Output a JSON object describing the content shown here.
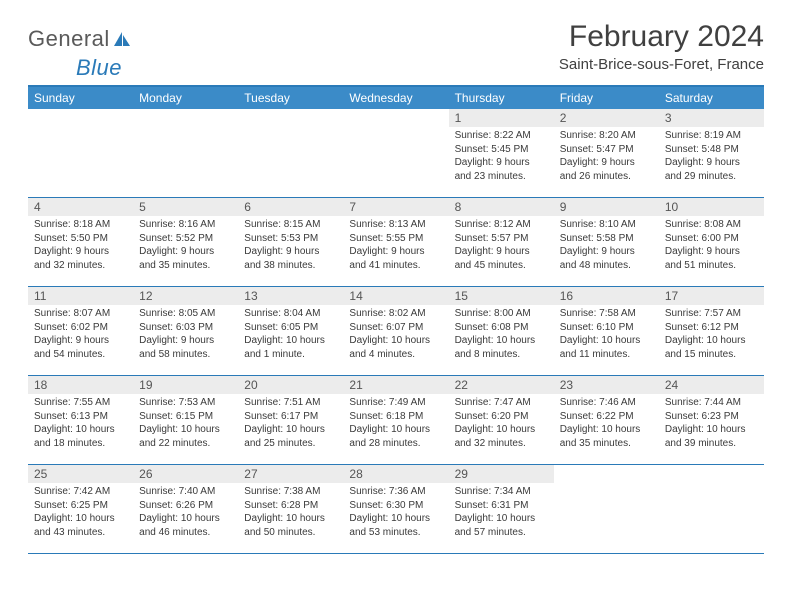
{
  "brand": {
    "text1": "General",
    "text2": "Blue"
  },
  "title": "February 2024",
  "location": "Saint-Brice-sous-Foret, France",
  "colors": {
    "header_bg": "#3b8bc8",
    "header_text": "#ffffff",
    "rule": "#2a7ab8",
    "daynum_bg": "#ececec",
    "daynum_text": "#555555",
    "body_text": "#3a3a3a",
    "title_text": "#404040"
  },
  "day_headers": [
    "Sunday",
    "Monday",
    "Tuesday",
    "Wednesday",
    "Thursday",
    "Friday",
    "Saturday"
  ],
  "weeks": [
    [
      null,
      null,
      null,
      null,
      {
        "n": "1",
        "sr": "Sunrise: 8:22 AM",
        "ss": "Sunset: 5:45 PM",
        "d1": "Daylight: 9 hours",
        "d2": "and 23 minutes."
      },
      {
        "n": "2",
        "sr": "Sunrise: 8:20 AM",
        "ss": "Sunset: 5:47 PM",
        "d1": "Daylight: 9 hours",
        "d2": "and 26 minutes."
      },
      {
        "n": "3",
        "sr": "Sunrise: 8:19 AM",
        "ss": "Sunset: 5:48 PM",
        "d1": "Daylight: 9 hours",
        "d2": "and 29 minutes."
      }
    ],
    [
      {
        "n": "4",
        "sr": "Sunrise: 8:18 AM",
        "ss": "Sunset: 5:50 PM",
        "d1": "Daylight: 9 hours",
        "d2": "and 32 minutes."
      },
      {
        "n": "5",
        "sr": "Sunrise: 8:16 AM",
        "ss": "Sunset: 5:52 PM",
        "d1": "Daylight: 9 hours",
        "d2": "and 35 minutes."
      },
      {
        "n": "6",
        "sr": "Sunrise: 8:15 AM",
        "ss": "Sunset: 5:53 PM",
        "d1": "Daylight: 9 hours",
        "d2": "and 38 minutes."
      },
      {
        "n": "7",
        "sr": "Sunrise: 8:13 AM",
        "ss": "Sunset: 5:55 PM",
        "d1": "Daylight: 9 hours",
        "d2": "and 41 minutes."
      },
      {
        "n": "8",
        "sr": "Sunrise: 8:12 AM",
        "ss": "Sunset: 5:57 PM",
        "d1": "Daylight: 9 hours",
        "d2": "and 45 minutes."
      },
      {
        "n": "9",
        "sr": "Sunrise: 8:10 AM",
        "ss": "Sunset: 5:58 PM",
        "d1": "Daylight: 9 hours",
        "d2": "and 48 minutes."
      },
      {
        "n": "10",
        "sr": "Sunrise: 8:08 AM",
        "ss": "Sunset: 6:00 PM",
        "d1": "Daylight: 9 hours",
        "d2": "and 51 minutes."
      }
    ],
    [
      {
        "n": "11",
        "sr": "Sunrise: 8:07 AM",
        "ss": "Sunset: 6:02 PM",
        "d1": "Daylight: 9 hours",
        "d2": "and 54 minutes."
      },
      {
        "n": "12",
        "sr": "Sunrise: 8:05 AM",
        "ss": "Sunset: 6:03 PM",
        "d1": "Daylight: 9 hours",
        "d2": "and 58 minutes."
      },
      {
        "n": "13",
        "sr": "Sunrise: 8:04 AM",
        "ss": "Sunset: 6:05 PM",
        "d1": "Daylight: 10 hours",
        "d2": "and 1 minute."
      },
      {
        "n": "14",
        "sr": "Sunrise: 8:02 AM",
        "ss": "Sunset: 6:07 PM",
        "d1": "Daylight: 10 hours",
        "d2": "and 4 minutes."
      },
      {
        "n": "15",
        "sr": "Sunrise: 8:00 AM",
        "ss": "Sunset: 6:08 PM",
        "d1": "Daylight: 10 hours",
        "d2": "and 8 minutes."
      },
      {
        "n": "16",
        "sr": "Sunrise: 7:58 AM",
        "ss": "Sunset: 6:10 PM",
        "d1": "Daylight: 10 hours",
        "d2": "and 11 minutes."
      },
      {
        "n": "17",
        "sr": "Sunrise: 7:57 AM",
        "ss": "Sunset: 6:12 PM",
        "d1": "Daylight: 10 hours",
        "d2": "and 15 minutes."
      }
    ],
    [
      {
        "n": "18",
        "sr": "Sunrise: 7:55 AM",
        "ss": "Sunset: 6:13 PM",
        "d1": "Daylight: 10 hours",
        "d2": "and 18 minutes."
      },
      {
        "n": "19",
        "sr": "Sunrise: 7:53 AM",
        "ss": "Sunset: 6:15 PM",
        "d1": "Daylight: 10 hours",
        "d2": "and 22 minutes."
      },
      {
        "n": "20",
        "sr": "Sunrise: 7:51 AM",
        "ss": "Sunset: 6:17 PM",
        "d1": "Daylight: 10 hours",
        "d2": "and 25 minutes."
      },
      {
        "n": "21",
        "sr": "Sunrise: 7:49 AM",
        "ss": "Sunset: 6:18 PM",
        "d1": "Daylight: 10 hours",
        "d2": "and 28 minutes."
      },
      {
        "n": "22",
        "sr": "Sunrise: 7:47 AM",
        "ss": "Sunset: 6:20 PM",
        "d1": "Daylight: 10 hours",
        "d2": "and 32 minutes."
      },
      {
        "n": "23",
        "sr": "Sunrise: 7:46 AM",
        "ss": "Sunset: 6:22 PM",
        "d1": "Daylight: 10 hours",
        "d2": "and 35 minutes."
      },
      {
        "n": "24",
        "sr": "Sunrise: 7:44 AM",
        "ss": "Sunset: 6:23 PM",
        "d1": "Daylight: 10 hours",
        "d2": "and 39 minutes."
      }
    ],
    [
      {
        "n": "25",
        "sr": "Sunrise: 7:42 AM",
        "ss": "Sunset: 6:25 PM",
        "d1": "Daylight: 10 hours",
        "d2": "and 43 minutes."
      },
      {
        "n": "26",
        "sr": "Sunrise: 7:40 AM",
        "ss": "Sunset: 6:26 PM",
        "d1": "Daylight: 10 hours",
        "d2": "and 46 minutes."
      },
      {
        "n": "27",
        "sr": "Sunrise: 7:38 AM",
        "ss": "Sunset: 6:28 PM",
        "d1": "Daylight: 10 hours",
        "d2": "and 50 minutes."
      },
      {
        "n": "28",
        "sr": "Sunrise: 7:36 AM",
        "ss": "Sunset: 6:30 PM",
        "d1": "Daylight: 10 hours",
        "d2": "and 53 minutes."
      },
      {
        "n": "29",
        "sr": "Sunrise: 7:34 AM",
        "ss": "Sunset: 6:31 PM",
        "d1": "Daylight: 10 hours",
        "d2": "and 57 minutes."
      },
      null,
      null
    ]
  ]
}
